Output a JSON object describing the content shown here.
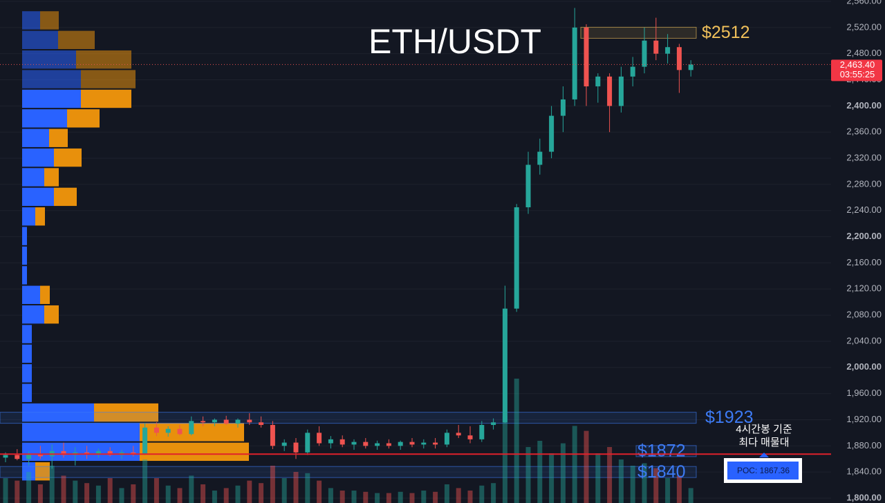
{
  "chart_data": {
    "type": "candlestick",
    "title": "ETH/USDT",
    "ylim": [
      1800,
      2560
    ],
    "yticks": [
      {
        "value": 1800,
        "label": "1,800.00"
      },
      {
        "value": 1840,
        "label": "1,840.00"
      },
      {
        "value": 1880,
        "label": "1,880.00"
      },
      {
        "value": 1920,
        "label": "1,920.00"
      },
      {
        "value": 1960,
        "label": "1,960.00"
      },
      {
        "value": 2000,
        "label": "2,000.00"
      },
      {
        "value": 2040,
        "label": "2,040.00"
      },
      {
        "value": 2080,
        "label": "2,080.00"
      },
      {
        "value": 2120,
        "label": "2,120.00"
      },
      {
        "value": 2160,
        "label": "2,160.00"
      },
      {
        "value": 2200,
        "label": "2,200.00"
      },
      {
        "value": 2240,
        "label": "2,240.00"
      },
      {
        "value": 2280,
        "label": "2,280.00"
      },
      {
        "value": 2320,
        "label": "2,320.00"
      },
      {
        "value": 2360,
        "label": "2,360.00"
      },
      {
        "value": 2400,
        "label": "2,400.00"
      },
      {
        "value": 2440,
        "label": "2,440.00"
      },
      {
        "value": 2480,
        "label": "2,480.00"
      },
      {
        "value": 2520,
        "label": "2,520.00"
      },
      {
        "value": 2560,
        "label": "2,560.00"
      }
    ],
    "grid": true,
    "up_color": "#26a69a",
    "down_color": "#ef5350",
    "open": [
      1862,
      1866,
      1860,
      1868,
      1864,
      1872,
      1866,
      1870,
      1868,
      1872,
      1866,
      1870,
      1868,
      1908,
      1900,
      1906,
      1898,
      1918,
      1916,
      1920,
      1914,
      1920,
      1916,
      1912,
      1880,
      1885,
      1870,
      1900,
      1884,
      1890,
      1882,
      1886,
      1880,
      1884,
      1880,
      1886,
      1882,
      1885,
      1882,
      1900,
      1896,
      1890,
      1912,
      1916,
      2090,
      2245,
      2310,
      2330,
      2385,
      2410,
      2520,
      2430,
      2445,
      2400,
      2445,
      2460,
      2500,
      2480,
      2490,
      2455
    ],
    "high": [
      1870,
      1875,
      1872,
      1880,
      1882,
      1885,
      1878,
      1880,
      1876,
      1878,
      1874,
      1880,
      1915,
      1916,
      1910,
      1912,
      1925,
      1925,
      1922,
      1926,
      1922,
      1930,
      1925,
      1918,
      1890,
      1892,
      1905,
      1910,
      1895,
      1896,
      1890,
      1892,
      1888,
      1890,
      1888,
      1892,
      1890,
      1892,
      1905,
      1912,
      1910,
      1918,
      1922,
      2125,
      2250,
      2330,
      2350,
      2400,
      2430,
      2550,
      2525,
      2450,
      2450,
      2460,
      2475,
      2520,
      2535,
      2510,
      2495,
      2470
    ],
    "low": [
      1855,
      1858,
      1850,
      1860,
      1845,
      1862,
      1850,
      1860,
      1862,
      1864,
      1860,
      1864,
      1866,
      1895,
      1894,
      1896,
      1896,
      1910,
      1910,
      1912,
      1908,
      1912,
      1908,
      1875,
      1872,
      1860,
      1866,
      1880,
      1876,
      1878,
      1874,
      1876,
      1874,
      1876,
      1874,
      1878,
      1876,
      1876,
      1878,
      1892,
      1884,
      1886,
      1905,
      1915,
      2085,
      2235,
      2295,
      2320,
      2360,
      2400,
      2400,
      2405,
      2360,
      2390,
      2430,
      2450,
      2470,
      2465,
      2420,
      2445
    ],
    "close": [
      1866,
      1860,
      1868,
      1864,
      1872,
      1866,
      1870,
      1868,
      1872,
      1866,
      1870,
      1868,
      1908,
      1900,
      1906,
      1898,
      1918,
      1916,
      1920,
      1914,
      1920,
      1916,
      1912,
      1880,
      1885,
      1870,
      1900,
      1884,
      1890,
      1882,
      1886,
      1880,
      1884,
      1880,
      1886,
      1882,
      1885,
      1882,
      1900,
      1896,
      1890,
      1912,
      1916,
      2090,
      2245,
      2310,
      2330,
      2385,
      2410,
      2520,
      2430,
      2445,
      2400,
      2445,
      2460,
      2500,
      2480,
      2490,
      2455,
      2463.4
    ],
    "volume": [
      20,
      18,
      25,
      15,
      30,
      22,
      18,
      16,
      14,
      20,
      12,
      15,
      35,
      20,
      14,
      12,
      22,
      15,
      10,
      12,
      14,
      18,
      16,
      30,
      20,
      25,
      24,
      18,
      12,
      10,
      10,
      9,
      8,
      8,
      9,
      8,
      10,
      9,
      15,
      12,
      10,
      14,
      16,
      70,
      100,
      45,
      50,
      40,
      48,
      62,
      58,
      40,
      45,
      35,
      30,
      32,
      28,
      20,
      22,
      12
    ],
    "profile_colors": [
      "#2962ff",
      "#e8900c"
    ],
    "profile_bins": [
      2546,
      2516,
      2486,
      2456,
      2426,
      2396,
      2366,
      2336,
      2306,
      2276,
      2246,
      2216,
      2186,
      2156,
      2126,
      2096,
      2066,
      2036,
      2006,
      1976,
      1946,
      1916,
      1886,
      1856,
      1826
    ],
    "profile_buy": [
      26,
      52,
      78,
      85,
      85,
      65,
      39,
      46,
      32,
      46,
      19,
      7,
      7,
      7,
      26,
      32,
      14,
      14,
      14,
      14,
      104,
      170,
      170,
      19
    ],
    "profile_sell": [
      27,
      53,
      80,
      79,
      73,
      47,
      27,
      40,
      21,
      33,
      14,
      0,
      0,
      0,
      14,
      21,
      0,
      0,
      0,
      0,
      93,
      151,
      158,
      21
    ],
    "levels": [
      {
        "value": 2512,
        "label": "$2512",
        "color": "#f0c05a"
      },
      {
        "value": 1923,
        "label": "$1923",
        "color": "#3d7bf5"
      },
      {
        "value": 1872,
        "label": "$1872",
        "color": "#3d7bf5"
      },
      {
        "value": 1840,
        "label": "$1840",
        "color": "#3d7bf5"
      }
    ],
    "poc": {
      "value": 1867.36,
      "label": "POC: 1867.36"
    },
    "poc_note": [
      "4시간봉 기준",
      "최다 매물대"
    ],
    "last": {
      "value": 2463.4,
      "label": "2,463.40"
    },
    "countdown": "03:55:25"
  }
}
